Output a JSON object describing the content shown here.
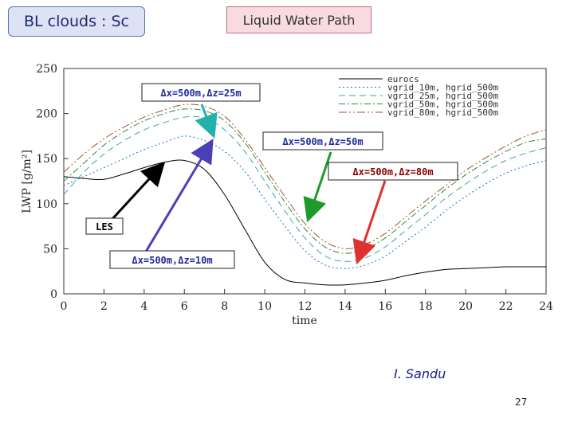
{
  "slide": {
    "title": "BL clouds : Sc",
    "topic": "Liquid Water Path",
    "author": "I. Sandu",
    "page_number": "27"
  },
  "colors": {
    "title_bg": "#dde2f5",
    "topic_bg": "#f7dbe1"
  },
  "chart_data": {
    "type": "line",
    "title": "",
    "xlabel": "time",
    "ylabel": "LWP [g/m²]",
    "xlim": [
      0,
      24
    ],
    "ylim": [
      0,
      250
    ],
    "xticks": [
      "0",
      "2",
      "4",
      "6",
      "8",
      "10",
      "12",
      "14",
      "16",
      "18",
      "20",
      "22",
      "24"
    ],
    "yticks": [
      "0",
      "50",
      "100",
      "150",
      "200",
      "250"
    ],
    "grid": false,
    "legend_placement": "top-right",
    "series": [
      {
        "name": "eurocs",
        "color": "#000000",
        "dash": "solid",
        "x": [
          0,
          1,
          2,
          3,
          4,
          5,
          6,
          7,
          8,
          9,
          10,
          11,
          12,
          13,
          14,
          15,
          16,
          17,
          18,
          19,
          20,
          21,
          22,
          23,
          24
        ],
        "y": [
          130,
          128,
          127,
          133,
          140,
          146,
          148,
          138,
          110,
          72,
          35,
          16,
          12,
          10,
          10,
          12,
          15,
          20,
          24,
          27,
          28,
          29,
          30,
          30,
          30
        ]
      },
      {
        "name": "vgrid_10m, hgrid_500m",
        "color": "#1f6fd1",
        "dash": "2,3",
        "x": [
          0,
          1,
          2,
          3,
          4,
          5,
          6,
          7,
          8,
          9,
          10,
          11,
          12,
          13,
          14,
          15,
          16,
          17,
          18,
          19,
          20,
          21,
          22,
          23,
          24
        ],
        "y": [
          120,
          130,
          140,
          150,
          160,
          168,
          175,
          170,
          158,
          136,
          105,
          75,
          48,
          32,
          28,
          32,
          42,
          58,
          74,
          92,
          108,
          122,
          134,
          142,
          148
        ]
      },
      {
        "name": "vgrid_25m, hgrid_500m",
        "color": "#3aa8a0",
        "dash": "8,5",
        "x": [
          0,
          1,
          2,
          3,
          4,
          5,
          6,
          7,
          8,
          9,
          10,
          11,
          12,
          13,
          14,
          15,
          16,
          17,
          18,
          19,
          20,
          21,
          22,
          23,
          24
        ],
        "y": [
          110,
          135,
          155,
          170,
          182,
          190,
          196,
          195,
          182,
          158,
          125,
          92,
          62,
          42,
          36,
          40,
          52,
          70,
          88,
          106,
          122,
          136,
          148,
          156,
          162
        ]
      },
      {
        "name": "vgrid_50m, hgrid_500m",
        "color": "#2e8b3a",
        "dash": "8,3,2,3",
        "x": [
          0,
          1,
          2,
          3,
          4,
          5,
          6,
          7,
          8,
          9,
          10,
          11,
          12,
          13,
          14,
          15,
          16,
          17,
          18,
          19,
          20,
          21,
          22,
          23,
          24
        ],
        "y": [
          125,
          145,
          165,
          180,
          192,
          200,
          205,
          203,
          192,
          168,
          135,
          102,
          72,
          52,
          45,
          50,
          62,
          80,
          98,
          116,
          132,
          146,
          158,
          168,
          172
        ]
      },
      {
        "name": "vgrid_80m, hgrid_500m",
        "color": "#a0522d",
        "dash": "10,3,2,3,2,3",
        "x": [
          0,
          1,
          2,
          3,
          4,
          5,
          6,
          7,
          8,
          9,
          10,
          11,
          12,
          13,
          14,
          15,
          16,
          17,
          18,
          19,
          20,
          21,
          22,
          23,
          24
        ],
        "y": [
          135,
          155,
          172,
          185,
          196,
          204,
          210,
          208,
          197,
          172,
          140,
          108,
          78,
          58,
          50,
          55,
          67,
          85,
          103,
          120,
          137,
          151,
          164,
          175,
          182
        ]
      }
    ],
    "annotations": [
      {
        "text": "Δx=500m,Δz=25m",
        "color": "#1f2a9a"
      },
      {
        "text": "Δx=500m,Δz=50m",
        "color": "#1f2a9a"
      },
      {
        "text": "Δx=500m,Δz=80m",
        "color": "#8b0000"
      },
      {
        "text": "LES",
        "color": "#000000"
      },
      {
        "text": "Δx=500m,Δz=10m",
        "color": "#1f2a9a"
      }
    ]
  }
}
